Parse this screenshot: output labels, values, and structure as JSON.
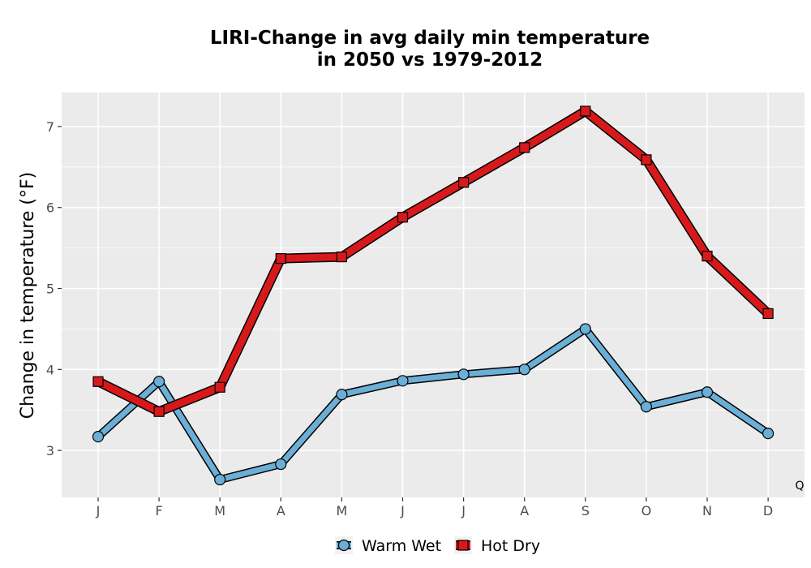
{
  "chart_data": {
    "type": "line",
    "title_lines": [
      "LIRI-Change in avg daily min temperature",
      "in 2050 vs 1979-2012"
    ],
    "xlabel": "",
    "ylabel": "Change in temperature (°F)",
    "categories": [
      "J",
      "F",
      "M",
      "A",
      "M",
      "J",
      "J",
      "A",
      "S",
      "O",
      "N",
      "D"
    ],
    "ylim": [
      2.42,
      7.42
    ],
    "yticks": [
      3,
      4,
      5,
      6,
      7
    ],
    "grid": true,
    "legend_position": "bottom",
    "corner_mark": "Q",
    "series": [
      {
        "name": "Warm Wet",
        "color": "#6baed6",
        "marker": "circle",
        "values": [
          3.17,
          3.85,
          2.64,
          2.83,
          3.69,
          3.86,
          3.94,
          4.0,
          4.5,
          3.54,
          3.72,
          3.21
        ]
      },
      {
        "name": "Hot Dry",
        "color": "#d7191c",
        "marker": "square",
        "values": [
          3.85,
          3.48,
          3.78,
          5.37,
          5.39,
          5.88,
          6.31,
          6.74,
          7.19,
          6.59,
          5.4,
          4.69
        ]
      }
    ]
  }
}
